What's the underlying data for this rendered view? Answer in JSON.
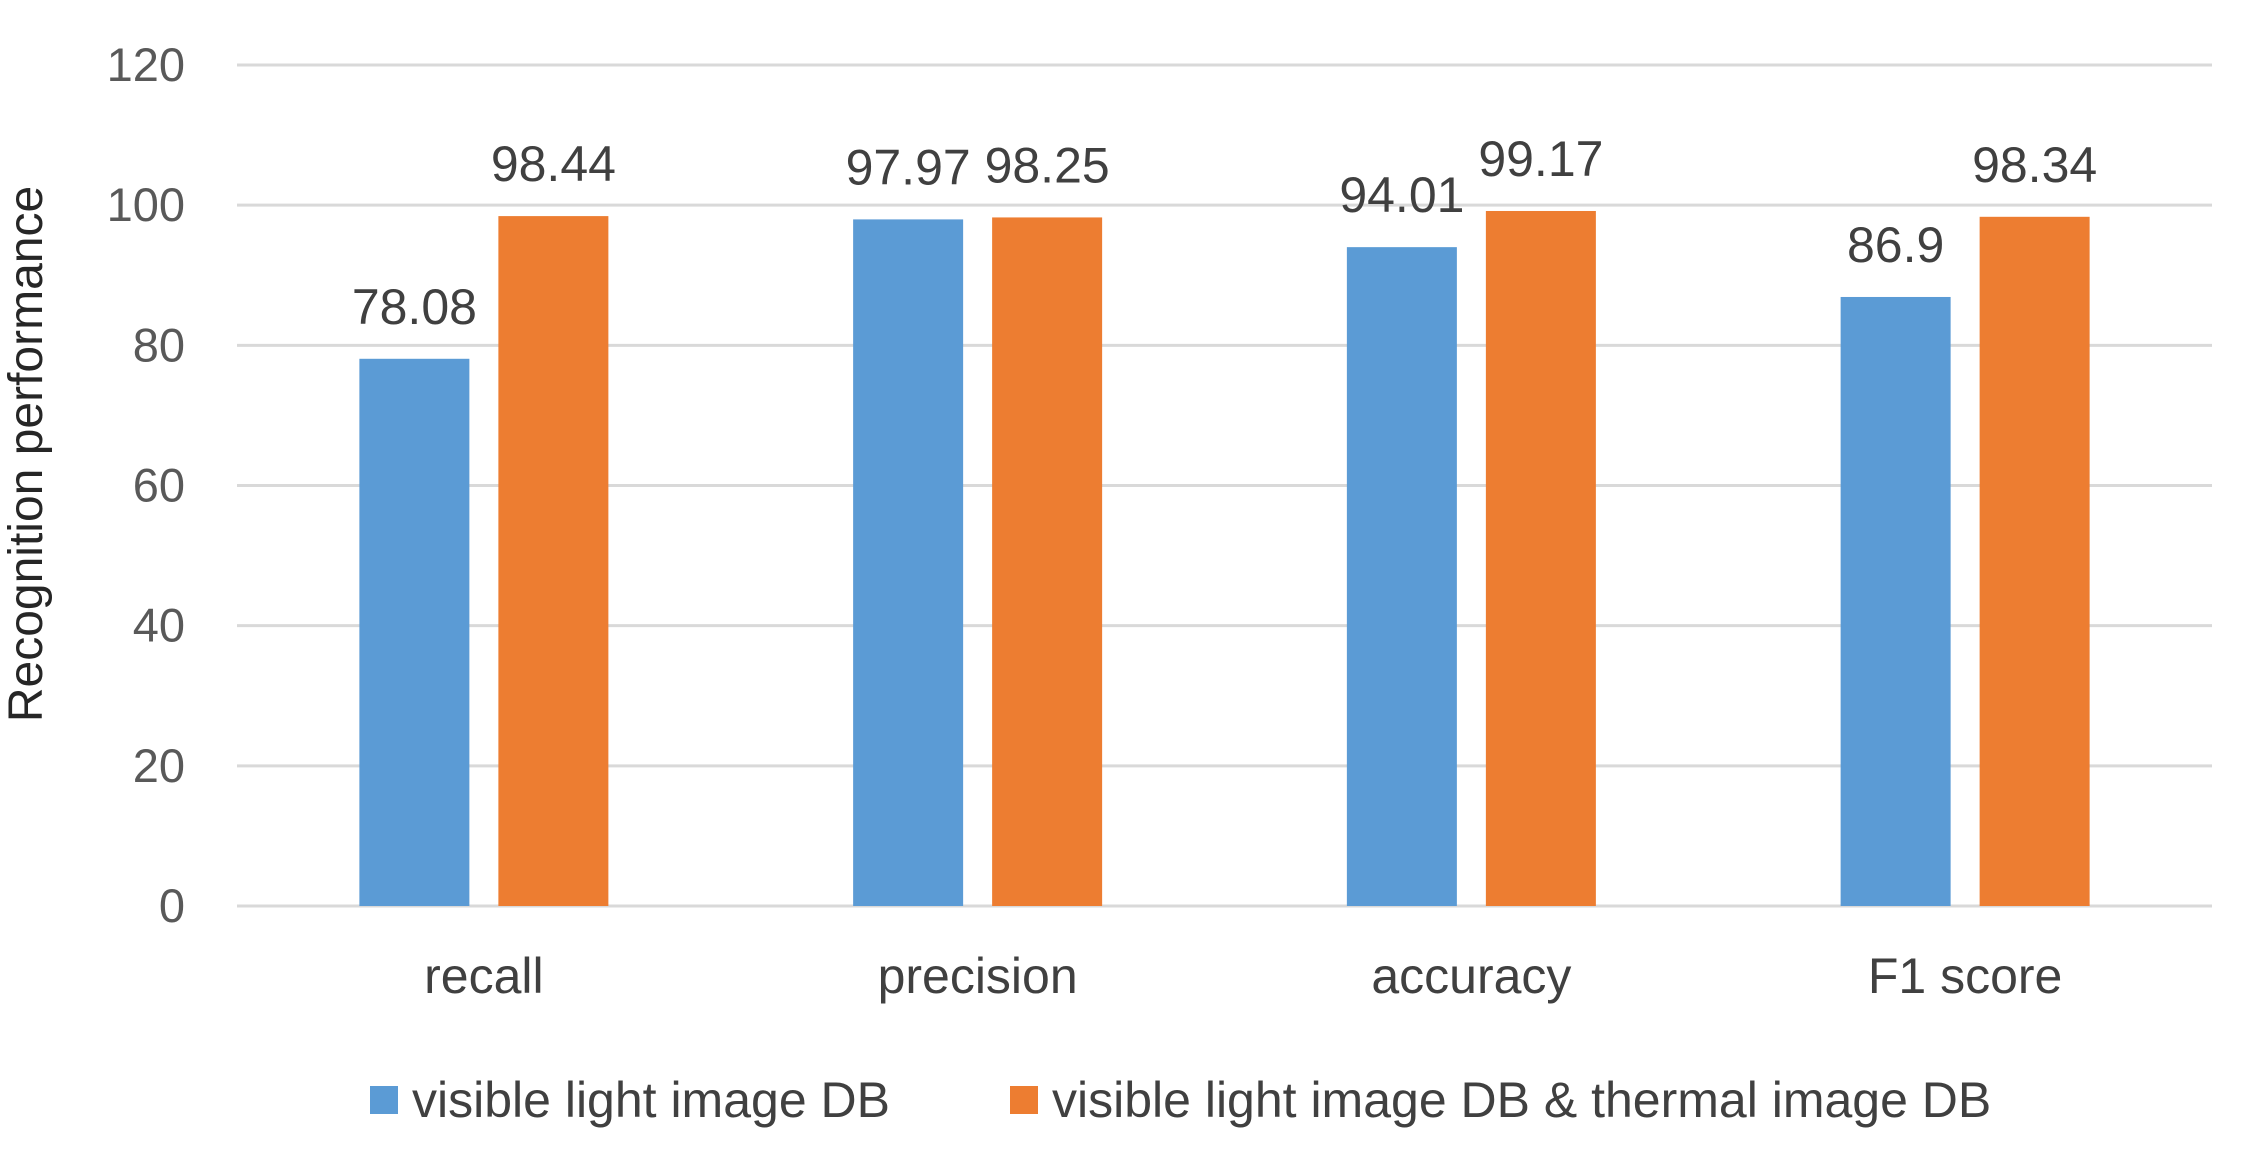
{
  "chart_data": {
    "type": "bar",
    "title": "",
    "xlabel": "",
    "ylabel": "Recognition performance",
    "ylim": [
      0,
      120
    ],
    "yticks": [
      0,
      20,
      40,
      60,
      80,
      100,
      120
    ],
    "grid": true,
    "legend_position": "bottom",
    "categories": [
      "recall",
      "precision",
      "accuracy",
      "F1 score"
    ],
    "series": [
      {
        "name": "visible light image DB",
        "color": "#5b9bd5",
        "values": [
          78.08,
          97.97,
          94.01,
          86.9
        ],
        "labels": [
          "78.08",
          "97.97",
          "94.01",
          "86.9"
        ]
      },
      {
        "name": "visible light image DB & thermal image DB",
        "color": "#ed7d31",
        "values": [
          98.44,
          98.25,
          99.17,
          98.34
        ],
        "labels": [
          "98.44",
          "98.25",
          "99.17",
          "98.34"
        ]
      }
    ]
  }
}
